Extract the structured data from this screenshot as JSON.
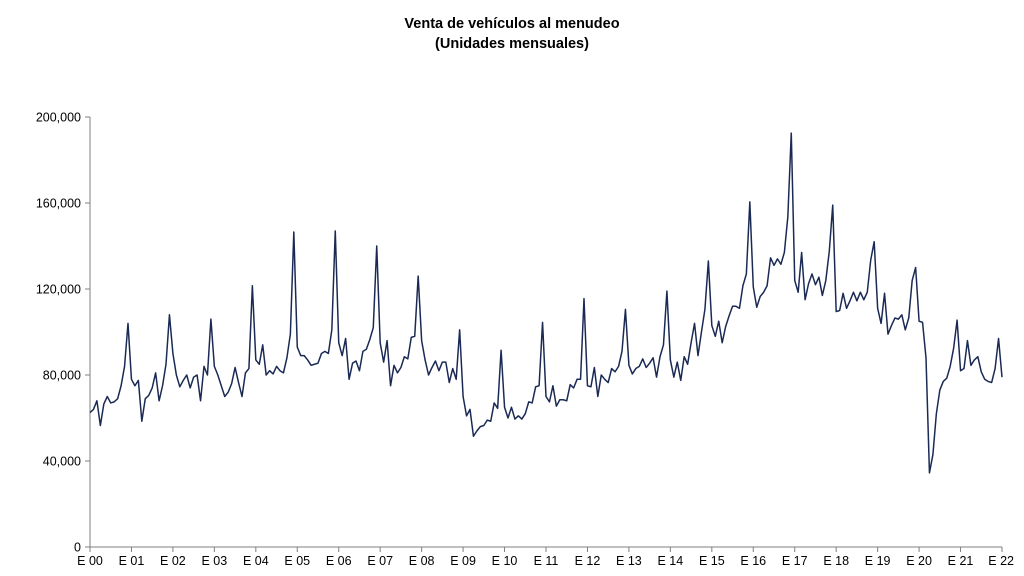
{
  "chart_data": {
    "type": "line",
    "title": "Venta de vehículos al menudeo",
    "subtitle": "(Unidades mensuales)",
    "xlabel": "",
    "ylabel": "",
    "ylim": [
      0,
      200000
    ],
    "y_ticks": [
      0,
      40000,
      80000,
      120000,
      160000,
      200000
    ],
    "y_tick_labels": [
      "0",
      "40,000",
      "80,000",
      "120,000",
      "160,000",
      "200,000"
    ],
    "x_ticks": [
      "E 00",
      "E 01",
      "E 02",
      "E 03",
      "E 04",
      "E 05",
      "E 06",
      "E 07",
      "E 08",
      "E 09",
      "E 10",
      "E 11",
      "E 12",
      "E 13",
      "E 14",
      "E 15",
      "E 16",
      "E 17",
      "E 18",
      "E 19",
      "E 20",
      "E 21",
      "E 22"
    ],
    "grid": false,
    "line_color": "#1b2a55",
    "series": [
      {
        "values": [
          62500,
          64000,
          68000,
          56500,
          66500,
          70000,
          67000,
          67500,
          69000,
          75000,
          84000,
          104000,
          78000,
          75000,
          77500,
          58500,
          69000,
          70500,
          74000,
          81000,
          68000,
          75000,
          85000,
          108000,
          90000,
          80000,
          74500,
          77500,
          80000,
          74000,
          79000,
          80000,
          68000,
          84000,
          80000,
          106000,
          84000,
          80000,
          75000,
          70000,
          72000,
          76000,
          83500,
          76500,
          70000,
          81000,
          83000,
          121500,
          87000,
          85000,
          94000,
          80000,
          82000,
          80500,
          84000,
          82000,
          81000,
          88000,
          99000,
          146500,
          93000,
          89000,
          89000,
          87000,
          84500,
          85000,
          85500,
          90000,
          91000,
          90000,
          101000,
          147000,
          95000,
          89000,
          97000,
          78000,
          85500,
          86500,
          82000,
          91000,
          92000,
          96500,
          102000,
          140000,
          95000,
          86000,
          96000,
          75000,
          84500,
          81000,
          83500,
          88500,
          87500,
          97500,
          98000,
          126000,
          96000,
          87000,
          80000,
          83500,
          86500,
          82000,
          86000,
          86000,
          76500,
          83000,
          78000,
          101000,
          70000,
          61000,
          64000,
          51500,
          54000,
          56000,
          56500,
          59000,
          58500,
          67000,
          64500,
          91500,
          65000,
          60000,
          65000,
          59500,
          61000,
          59500,
          62000,
          67500,
          67000,
          74500,
          75000,
          104500,
          70000,
          67500,
          75000,
          65500,
          68500,
          68500,
          68000,
          75500,
          74000,
          78000,
          78000,
          115500,
          75000,
          74500,
          83500,
          70000,
          80000,
          78000,
          76500,
          83000,
          81500,
          84000,
          91000,
          110500,
          84500,
          80500,
          83000,
          84000,
          87500,
          83500,
          85500,
          88000,
          79000,
          88500,
          94000,
          119000,
          87000,
          79000,
          86000,
          77500,
          88500,
          85000,
          95000,
          104000,
          89000,
          100000,
          110500,
          133000,
          103000,
          98000,
          105000,
          95000,
          102500,
          107500,
          112000,
          112000,
          111000,
          121500,
          127000,
          160500,
          121000,
          111500,
          116500,
          118500,
          121500,
          134500,
          131000,
          134000,
          131500,
          137000,
          153500,
          192500,
          124000,
          118500,
          137000,
          115000,
          122500,
          127000,
          122000,
          125500,
          117000,
          124000,
          137500,
          159000,
          109500,
          110000,
          118000,
          111000,
          114500,
          118500,
          114500,
          118500,
          115000,
          118500,
          133500,
          142000,
          111000,
          104000,
          118000,
          99000,
          103000,
          106500,
          106000,
          108000,
          101000,
          106500,
          124000,
          130000,
          105000,
          104500,
          88000,
          34500,
          43000,
          62000,
          73000,
          77000,
          78500,
          84000,
          92500,
          105500,
          82000,
          83000,
          96000,
          84500,
          87000,
          88500,
          81500,
          78000,
          77000,
          76500,
          83000,
          97000,
          79000
        ]
      }
    ]
  }
}
